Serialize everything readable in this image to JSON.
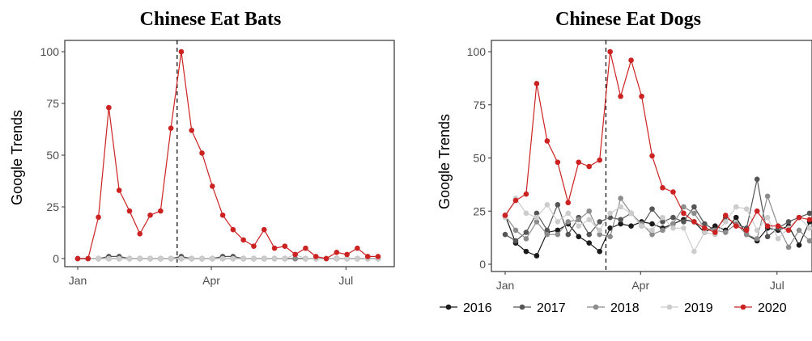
{
  "chart_data": [
    {
      "type": "line",
      "title": "Chinese Eat Bats",
      "xlabel": "",
      "ylabel": "Google Trends",
      "ylim": [
        0,
        100
      ],
      "yticks": [
        0,
        25,
        50,
        75,
        100
      ],
      "xticks": [
        {
          "label": "Jan",
          "week": 0
        },
        {
          "label": "Apr",
          "week": 12.9
        },
        {
          "label": "Jul",
          "week": 25.9
        }
      ],
      "x_weeks": [
        0,
        1,
        2,
        3,
        4,
        5,
        6,
        7,
        8,
        9,
        10,
        11,
        12,
        13,
        14,
        15,
        16,
        17,
        18,
        19,
        20,
        21,
        22,
        23,
        24,
        25,
        26,
        27,
        28,
        29
      ],
      "event_line_week": 9.6,
      "grid": false,
      "series": [
        {
          "name": "2016",
          "color": "#1a1a1a",
          "values": [
            0,
            0,
            0,
            0,
            0,
            0,
            0,
            0,
            0,
            0,
            0,
            0,
            0,
            0,
            0,
            0,
            0,
            0,
            0,
            0,
            0,
            0,
            0,
            0,
            0,
            0,
            0,
            0,
            0,
            0
          ]
        },
        {
          "name": "2017",
          "color": "#555555",
          "values": [
            0,
            0,
            0,
            1,
            1,
            0,
            0,
            0,
            0,
            0,
            1,
            0,
            0,
            0,
            1,
            1,
            0,
            0,
            0,
            0,
            0,
            0,
            0,
            0,
            0,
            0,
            0,
            0,
            0,
            0
          ]
        },
        {
          "name": "2018",
          "color": "#8c8c8c",
          "values": [
            0,
            0,
            0,
            0,
            0,
            0,
            0,
            0,
            0,
            0,
            0,
            0,
            0,
            0,
            0,
            0,
            0,
            0,
            0,
            0,
            0,
            0,
            0,
            0,
            0,
            0,
            0,
            0,
            0,
            0
          ]
        },
        {
          "name": "2019",
          "color": "#cccccc",
          "values": [
            0,
            0,
            0,
            0,
            0,
            0,
            0,
            0,
            0,
            0,
            0,
            0,
            0,
            0,
            0,
            0,
            0,
            0,
            0,
            0,
            0,
            2,
            0,
            0,
            0,
            0,
            0,
            0,
            0,
            0
          ]
        },
        {
          "name": "2020",
          "color": "#cc2222",
          "values": [
            0,
            0,
            20,
            73,
            33,
            23,
            12,
            21,
            23,
            63,
            100,
            62,
            51,
            35,
            21,
            14,
            9,
            6,
            14,
            5,
            6,
            2,
            5,
            1,
            0,
            3,
            2,
            5,
            1,
            1
          ]
        }
      ]
    },
    {
      "type": "line",
      "title": "Chinese Eat Dogs",
      "xlabel": "",
      "ylabel": "Google Trends",
      "ylim": [
        0,
        100
      ],
      "yticks": [
        0,
        25,
        50,
        75,
        100
      ],
      "xticks": [
        {
          "label": "Jan",
          "week": 0
        },
        {
          "label": "Apr",
          "week": 12.9
        },
        {
          "label": "Jul",
          "week": 25.9
        }
      ],
      "x_weeks": [
        0,
        1,
        2,
        3,
        4,
        5,
        6,
        7,
        8,
        9,
        10,
        11,
        12,
        13,
        14,
        15,
        16,
        17,
        18,
        19,
        20,
        21,
        22,
        23,
        24,
        25,
        26,
        27,
        28,
        29
      ],
      "event_line_week": 9.6,
      "grid": false,
      "legend_position": "bottom",
      "series": [
        {
          "name": "2016",
          "color": "#1a1a1a",
          "values": [
            23,
            10,
            6,
            4,
            15,
            16,
            19,
            13,
            10,
            6,
            17,
            19,
            18,
            20,
            19,
            17,
            19,
            21,
            20,
            15,
            18,
            16,
            22,
            14,
            11,
            17,
            16,
            18,
            9,
            20
          ]
        },
        {
          "name": "2017",
          "color": "#555555",
          "values": [
            14,
            11,
            15,
            24,
            16,
            28,
            14,
            22,
            14,
            20,
            22,
            21,
            24,
            18,
            26,
            20,
            22,
            20,
            27,
            19,
            16,
            22,
            19,
            17,
            40,
            13,
            17,
            20,
            22,
            24
          ]
        },
        {
          "name": "2018",
          "color": "#8c8c8c",
          "values": [
            23,
            16,
            12,
            20,
            14,
            14,
            20,
            21,
            25,
            14,
            13,
            31,
            24,
            19,
            14,
            16,
            19,
            27,
            24,
            17,
            16,
            15,
            19,
            14,
            12,
            32,
            18,
            8,
            16,
            11
          ]
        },
        {
          "name": "2019",
          "color": "#cccccc",
          "values": [
            22,
            31,
            24,
            22,
            28,
            20,
            24,
            18,
            21,
            16,
            24,
            27,
            24,
            18,
            16,
            22,
            17,
            17,
            6,
            15,
            14,
            20,
            27,
            26,
            16,
            22,
            12,
            17,
            22,
            17
          ]
        },
        {
          "name": "2020",
          "color": "#cc2222",
          "values": [
            23,
            30,
            33,
            85,
            58,
            48,
            29,
            48,
            46,
            49,
            100,
            79,
            96,
            79,
            51,
            36,
            34,
            24,
            20,
            17,
            15,
            23,
            18,
            16,
            25,
            18,
            18,
            16,
            22,
            21
          ]
        }
      ]
    }
  ],
  "legend": [
    "2016",
    "2017",
    "2018",
    "2019",
    "2020"
  ]
}
